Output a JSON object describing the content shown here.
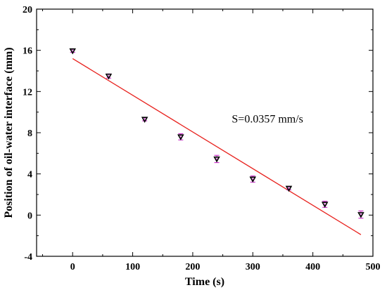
{
  "chart_data": {
    "type": "scatter",
    "xlabel": "Time (s)",
    "ylabel": "Position of oil-water interface (mm)",
    "xlim": [
      -60,
      500
    ],
    "ylim": [
      -4,
      20
    ],
    "xticks": [
      0,
      100,
      200,
      300,
      400,
      500
    ],
    "yticks": [
      -4,
      0,
      4,
      8,
      12,
      16,
      20
    ],
    "grid": false,
    "points": [
      {
        "x": 0,
        "y": 15.95,
        "err": 0.15
      },
      {
        "x": 60,
        "y": 13.5,
        "err": 0.2
      },
      {
        "x": 120,
        "y": 9.3,
        "err": 0.15
      },
      {
        "x": 180,
        "y": 7.6,
        "err": 0.3
      },
      {
        "x": 240,
        "y": 5.45,
        "err": 0.35
      },
      {
        "x": 300,
        "y": 3.5,
        "err": 0.3
      },
      {
        "x": 360,
        "y": 2.6,
        "err": 0.15
      },
      {
        "x": 420,
        "y": 1.05,
        "err": 0.3
      },
      {
        "x": 480,
        "y": 0.05,
        "err": 0.35
      }
    ],
    "fit_line": {
      "x": [
        0,
        480
      ],
      "y": [
        15.2,
        -1.9
      ],
      "color": "#e8231f"
    },
    "annotation": {
      "text": "S=0.0357 mm/s",
      "x": 265,
      "y": 9
    },
    "marker_color": "#000000",
    "error_color": "#cc33cc"
  }
}
